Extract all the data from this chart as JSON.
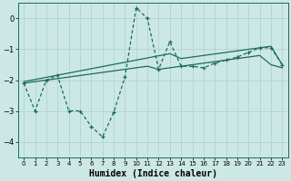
{
  "xlabel": "Humidex (Indice chaleur)",
  "bg_color": "#cce8e5",
  "grid_color": "#aacfcc",
  "line_color": "#1a6b5e",
  "x_data": [
    0,
    1,
    2,
    3,
    4,
    5,
    6,
    7,
    8,
    9,
    10,
    11,
    12,
    13,
    14,
    15,
    16,
    17,
    18,
    19,
    20,
    21,
    22,
    23
  ],
  "y_main": [
    -2.1,
    -3.0,
    -2.0,
    -1.85,
    -3.0,
    -3.0,
    -3.5,
    -3.85,
    -3.05,
    -1.9,
    0.35,
    0.0,
    -1.65,
    -0.75,
    -1.55,
    -1.55,
    -1.6,
    -1.45,
    -1.35,
    -1.25,
    -1.1,
    -0.95,
    -0.95,
    -1.5
  ],
  "y_upper": [
    -2.05,
    -1.98,
    -1.91,
    -1.84,
    -1.77,
    -1.7,
    -1.63,
    -1.56,
    -1.49,
    -1.42,
    -1.35,
    -1.28,
    -1.21,
    -1.14,
    -1.3,
    -1.25,
    -1.2,
    -1.15,
    -1.1,
    -1.05,
    -1.0,
    -0.95,
    -0.9,
    -1.5
  ],
  "y_lower": [
    -2.1,
    -2.05,
    -2.0,
    -1.95,
    -1.9,
    -1.85,
    -1.8,
    -1.75,
    -1.7,
    -1.65,
    -1.6,
    -1.55,
    -1.65,
    -1.6,
    -1.55,
    -1.5,
    -1.45,
    -1.4,
    -1.35,
    -1.3,
    -1.25,
    -1.2,
    -1.5,
    -1.6
  ],
  "ylim": [
    -4.5,
    0.5
  ],
  "yticks": [
    0,
    -1,
    -2,
    -3,
    -4
  ],
  "xlim": [
    -0.5,
    23.5
  ],
  "xtick_fontsize": 5,
  "ytick_fontsize": 6,
  "xlabel_fontsize": 7
}
